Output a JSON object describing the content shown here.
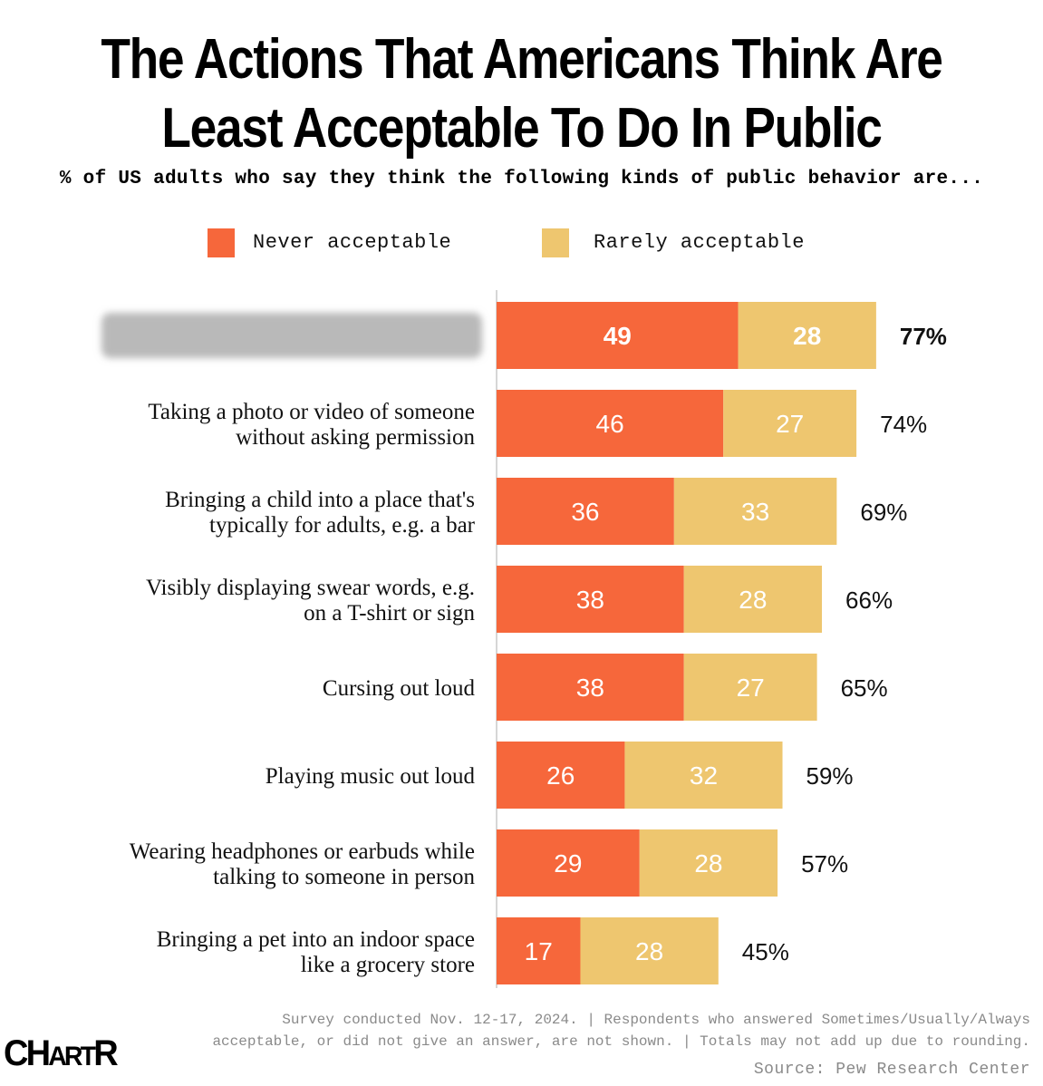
{
  "chart_data": {
    "type": "bar",
    "orientation": "horizontal",
    "stacked": true,
    "title": "The Actions That Americans Think Are Least Acceptable To Do In Public",
    "title_lines": [
      "The Actions That Americans Think Are",
      "Least Acceptable To Do In Public"
    ],
    "subtitle": "% of US adults who say they think the following kinds of public behavior are...",
    "categories": [
      [
        "[redacted]"
      ],
      [
        "Taking a photo or video of someone",
        "without asking permission"
      ],
      [
        "Bringing a child into a place that's",
        "typically for adults, e.g. a bar"
      ],
      [
        "Visibly displaying swear words, e.g.",
        "on a T-shirt or sign"
      ],
      [
        "Cursing out loud"
      ],
      [
        "Playing music out loud"
      ],
      [
        "Wearing headphones or earbuds while",
        "talking to someone in person"
      ],
      [
        "Bringing a pet into an indoor space",
        "like a grocery store"
      ]
    ],
    "series": [
      {
        "name": "Never acceptable",
        "color": "#f6673b",
        "values": [
          49,
          46,
          36,
          38,
          38,
          26,
          29,
          17
        ]
      },
      {
        "name": "Rarely acceptable",
        "color": "#eec66f",
        "values": [
          28,
          27,
          33,
          28,
          27,
          32,
          28,
          28
        ]
      }
    ],
    "totals": [
      "77%",
      "74%",
      "69%",
      "66%",
      "65%",
      "59%",
      "57%",
      "45%"
    ],
    "highlight_index": 0,
    "redacted_index": 0,
    "xlim": [
      0,
      100
    ]
  },
  "legend": {
    "never_label": "Never acceptable",
    "rarely_label": "Rarely acceptable",
    "never_color": "#f6673b",
    "rarely_color": "#eec66f"
  },
  "footnote": {
    "line1": "Survey conducted Nov. 12-17, 2024. | Respondents who answered Sometimes/Usually/Always",
    "line2": "acceptable, or did not give an answer, are not shown. | Totals may not add up due to rounding."
  },
  "source": "Source: Pew Research Center",
  "logo": {
    "part1": "CH",
    "part2": "ART",
    "part3": "R"
  }
}
